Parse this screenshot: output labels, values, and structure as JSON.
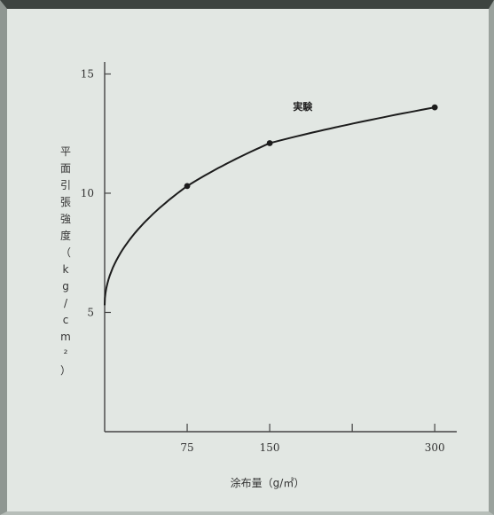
{
  "chart_data": {
    "type": "line",
    "title": "",
    "xlabel": "涂布量（g/㎡）",
    "ylabel": "平面引張強度（kg/cm²）",
    "xlim": [
      0,
      320
    ],
    "ylim": [
      0,
      15.5
    ],
    "x_ticks": [
      {
        "value": 75,
        "label": "75"
      },
      {
        "value": 150,
        "label": "150"
      },
      {
        "value": 225,
        "label": ""
      },
      {
        "value": 300,
        "label": "300"
      }
    ],
    "y_ticks": [
      {
        "value": 5,
        "label": "5"
      },
      {
        "value": 10,
        "label": "10"
      },
      {
        "value": 15,
        "label": "15"
      }
    ],
    "series": [
      {
        "name": "実験",
        "x": [
          0,
          75,
          150,
          300
        ],
        "y": [
          5.3,
          10.3,
          12.1,
          13.6
        ]
      }
    ],
    "grid": false,
    "colors": {
      "line": "#1c1c1c",
      "axis": "#444444",
      "background": "#e2e7e3"
    }
  }
}
